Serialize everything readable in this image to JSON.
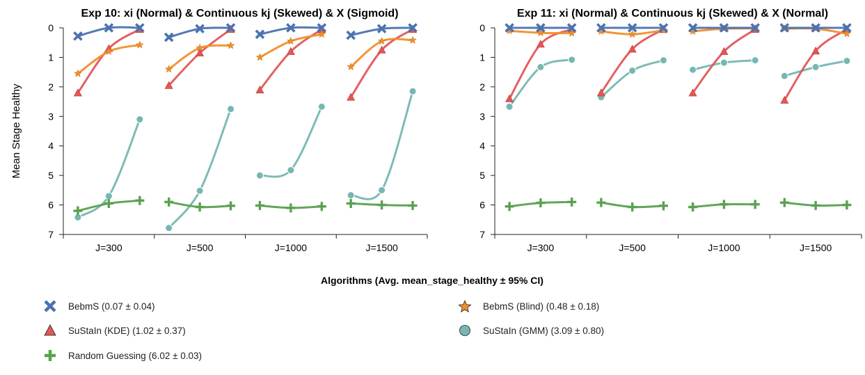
{
  "figure": {
    "shared_xlabel": "Algorithms (Avg. mean_stage_healthy ± 95% CI)",
    "shared_ylabel": "Mean Stage Healthy"
  },
  "legend": [
    {
      "key": "bebms",
      "label": "BebmS (0.07 ± 0.04)",
      "marker": "x",
      "color": "#4c72b0"
    },
    {
      "key": "bebms_blind",
      "label": "BebmS (Blind) (0.48 ± 0.18)",
      "marker": "star",
      "color": "#f28e2b"
    },
    {
      "key": "sustain_kde",
      "label": "SuStaIn (KDE) (1.02 ± 0.37)",
      "marker": "triangle",
      "color": "#e15759"
    },
    {
      "key": "sustain_gmm",
      "label": "SuStaIn (GMM) (3.09 ± 0.80)",
      "marker": "circle",
      "color": "#76b7b2"
    },
    {
      "key": "random",
      "label": "Random Guessing (6.02 ± 0.03)",
      "marker": "plus",
      "color": "#59a14f"
    }
  ],
  "chart_data": [
    {
      "type": "line",
      "title": "Exp 10: xi (Normal) & Continuous kj (Skewed) & X (Sigmoid)",
      "ylabel": "Mean Stage Healthy",
      "xlabel": "",
      "ylim": [
        7,
        0
      ],
      "yticks": [
        "0",
        "1",
        "2",
        "3",
        "4",
        "5",
        "6",
        "7"
      ],
      "categories": [
        "J=300",
        "J=500",
        "J=1000",
        "J=1500"
      ],
      "series": [
        {
          "key": "sustain_gmm",
          "values": [
            [
              6.42,
              5.7,
              3.1
            ],
            [
              6.78,
              5.52,
              2.75
            ],
            [
              5.0,
              4.82,
              2.67
            ],
            [
              5.67,
              5.5,
              2.15
            ]
          ]
        },
        {
          "key": "random",
          "values": [
            [
              6.2,
              5.95,
              5.85
            ],
            [
              5.9,
              6.07,
              6.03
            ],
            [
              6.02,
              6.1,
              6.05
            ],
            [
              5.95,
              6.0,
              6.02
            ]
          ]
        },
        {
          "key": "sustain_kde",
          "values": [
            [
              2.2,
              0.7,
              0.05
            ],
            [
              1.95,
              0.85,
              0.05
            ],
            [
              2.1,
              0.8,
              0.05
            ],
            [
              2.35,
              0.75,
              0.05
            ]
          ]
        },
        {
          "key": "bebms_blind",
          "values": [
            [
              1.55,
              0.8,
              0.58
            ],
            [
              1.4,
              0.68,
              0.6
            ],
            [
              1.0,
              0.45,
              0.22
            ],
            [
              1.32,
              0.45,
              0.42
            ]
          ]
        },
        {
          "key": "bebms",
          "values": [
            [
              0.28,
              0.0,
              0.0
            ],
            [
              0.32,
              0.03,
              0.0
            ],
            [
              0.22,
              0.0,
              0.0
            ],
            [
              0.25,
              0.03,
              0.0
            ]
          ]
        }
      ]
    },
    {
      "type": "line",
      "title": "Exp 11: xi (Normal) & Continuous kj (Skewed) & X (Normal)",
      "ylabel": "",
      "xlabel": "",
      "ylim": [
        7,
        0
      ],
      "yticks": [
        "0",
        "1",
        "2",
        "3",
        "4",
        "5",
        "6",
        "7"
      ],
      "categories": [
        "J=300",
        "J=500",
        "J=1000",
        "J=1500"
      ],
      "series": [
        {
          "key": "sustain_gmm",
          "values": [
            [
              2.67,
              1.33,
              1.08
            ],
            [
              2.35,
              1.45,
              1.1
            ],
            [
              1.42,
              1.18,
              1.1
            ],
            [
              1.63,
              1.33,
              1.12
            ]
          ]
        },
        {
          "key": "random",
          "values": [
            [
              6.05,
              5.93,
              5.9
            ],
            [
              5.92,
              6.07,
              6.03
            ],
            [
              6.07,
              5.98,
              5.98
            ],
            [
              5.92,
              6.02,
              6.0
            ]
          ]
        },
        {
          "key": "sustain_kde",
          "values": [
            [
              2.4,
              0.55,
              0.05
            ],
            [
              2.2,
              0.72,
              0.05
            ],
            [
              2.2,
              0.8,
              0.05
            ],
            [
              2.45,
              0.78,
              0.05
            ]
          ]
        },
        {
          "key": "bebms_blind",
          "values": [
            [
              0.1,
              0.17,
              0.18
            ],
            [
              0.12,
              0.22,
              0.08
            ],
            [
              0.12,
              0.03,
              0.02
            ],
            [
              0.03,
              0.03,
              0.2
            ]
          ]
        },
        {
          "key": "bebms",
          "values": [
            [
              0.0,
              0.0,
              0.0
            ],
            [
              0.0,
              0.0,
              0.0
            ],
            [
              0.0,
              0.0,
              0.0
            ],
            [
              0.0,
              0.0,
              0.0
            ]
          ]
        }
      ]
    }
  ]
}
